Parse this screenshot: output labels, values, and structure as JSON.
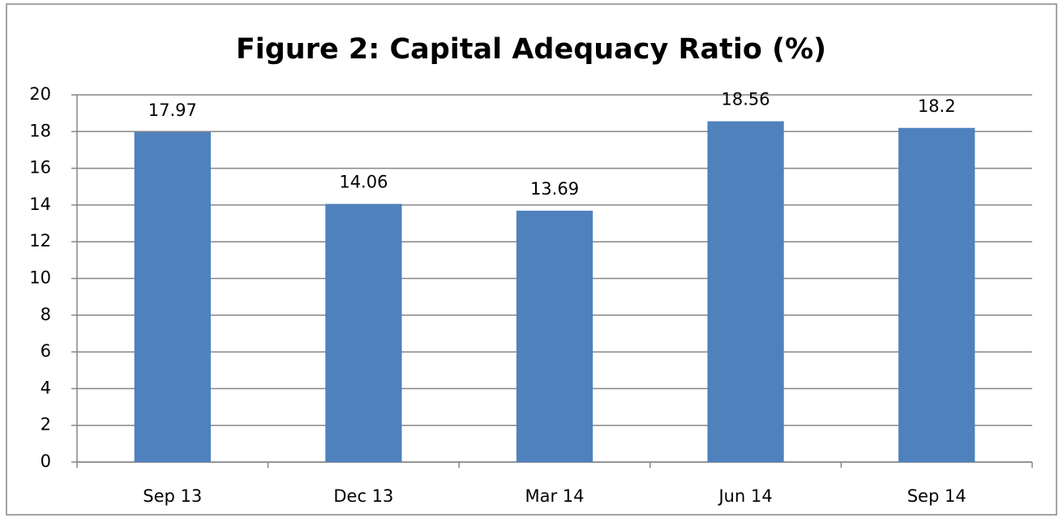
{
  "chart_data": {
    "type": "bar",
    "title": "Figure 2: Capital Adequacy Ratio (%)",
    "categories": [
      "Sep 13",
      "Dec 13",
      "Mar 14",
      "Jun 14",
      "Sep 14"
    ],
    "values": [
      17.97,
      14.06,
      13.69,
      18.56,
      18.2
    ],
    "color": "#4f81bd",
    "ylim": [
      0,
      20
    ],
    "yticks": [
      0,
      2,
      4,
      6,
      8,
      10,
      12,
      14,
      16,
      18,
      20
    ],
    "grid": true
  }
}
